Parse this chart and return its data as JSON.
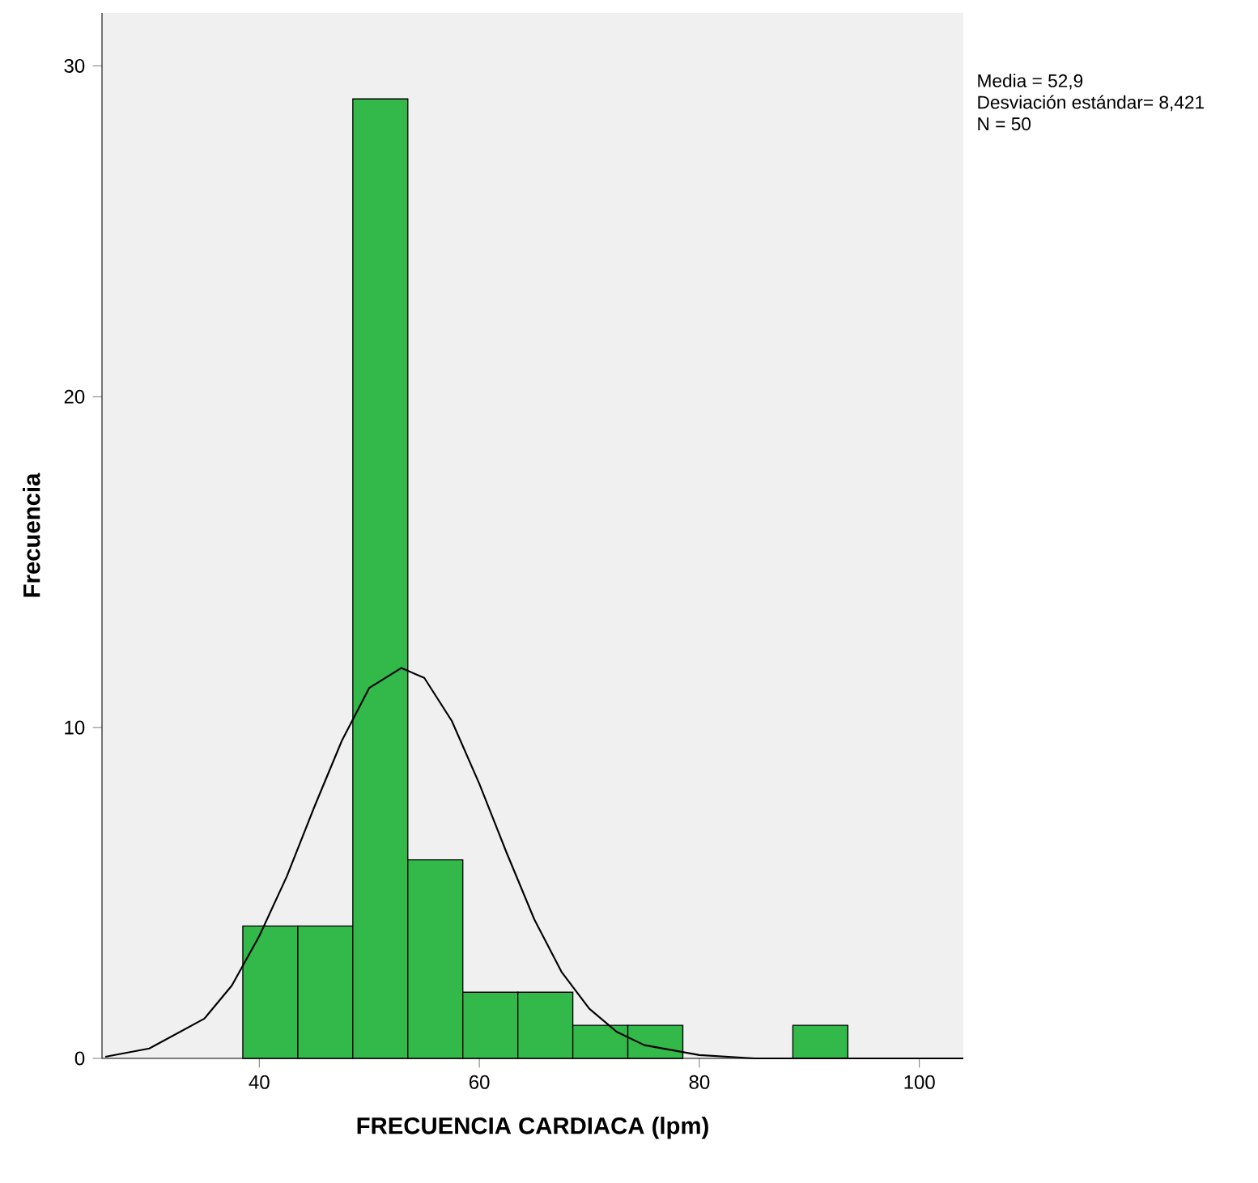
{
  "chart_data": {
    "type": "histogram",
    "xlabel": "FRECUENCIA CARDIACA  (lpm)",
    "ylabel": "Frecuencia",
    "bins": [
      38.5,
      43.5,
      48.5,
      53.5,
      58.5,
      63.5,
      68.5,
      73.5,
      78.5,
      83.5,
      88.5,
      93.5
    ],
    "values": [
      4,
      4,
      29,
      6,
      2,
      2,
      1,
      1,
      0,
      0,
      1
    ],
    "color": "#33b84a",
    "series": [
      {
        "type": "line",
        "color": "#000000",
        "x": [
          26,
          30,
          35,
          37.5,
          40,
          42.5,
          45,
          47.5,
          50,
          52.9,
          55,
          57.5,
          60,
          62.5,
          65,
          67.5,
          70,
          72.5,
          75,
          80,
          85,
          90,
          104
        ],
        "values": [
          0.05,
          0.3,
          1.2,
          2.2,
          3.7,
          5.5,
          7.6,
          9.6,
          11.2,
          11.8,
          11.5,
          10.2,
          8.3,
          6.2,
          4.2,
          2.6,
          1.5,
          0.8,
          0.4,
          0.1,
          0,
          0,
          0
        ]
      }
    ],
    "xlim": [
      25.7,
      104
    ],
    "ylim": [
      0,
      31.6
    ],
    "xticks": [
      40,
      60,
      80,
      100
    ],
    "yticks": [
      0,
      10,
      20,
      30
    ],
    "annotations": [
      "Media = 52,9",
      "Desviación estándar= 8,421",
      "N = 50"
    ]
  }
}
